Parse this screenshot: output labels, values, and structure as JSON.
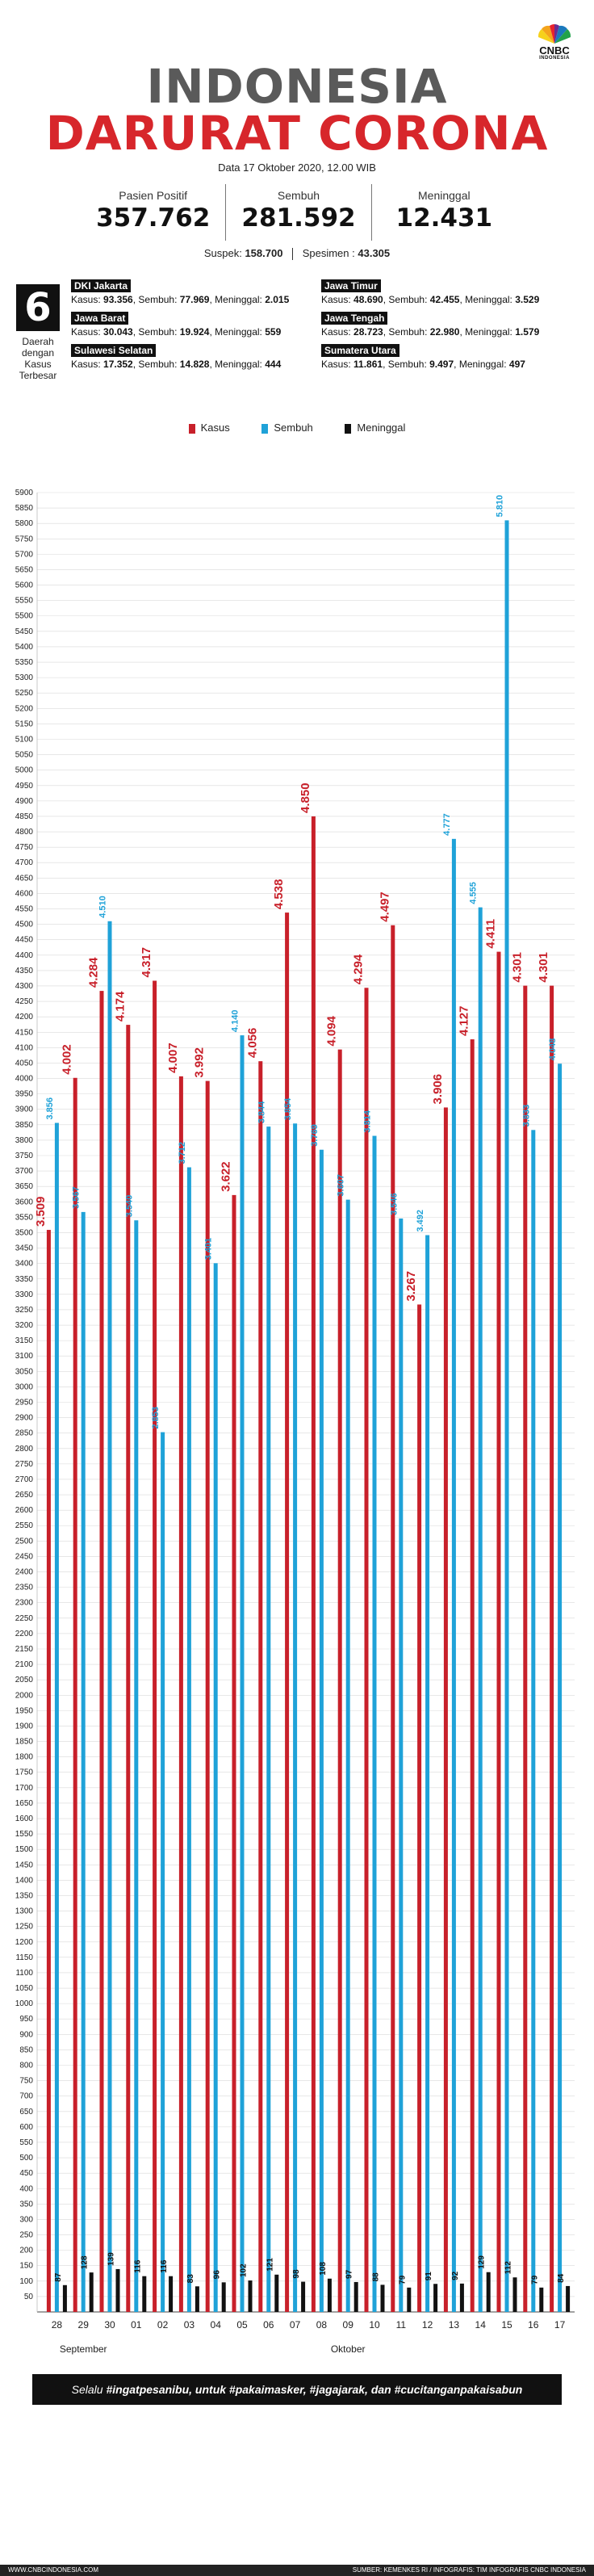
{
  "header": {
    "logo_text": "CNBC",
    "logo_sub": "INDONESIA",
    "title_line1": "INDONESIA",
    "title_line2": "DARURAT CORONA",
    "date": "Data 17 Oktober 2020, 12.00 WIB"
  },
  "stats": [
    {
      "label": "Pasien Positif",
      "value": "357.762"
    },
    {
      "label": "Sembuh",
      "value": "281.592"
    },
    {
      "label": "Meninggal",
      "value": "12.431"
    }
  ],
  "sub_stats": {
    "suspek_label": "Suspek:",
    "suspek_value": "158.700",
    "spesimen_label": "Spesimen :",
    "spesimen_value": "43.305"
  },
  "regions_box": {
    "count": "6",
    "caption": "Daerah dengan Kasus Terbesar",
    "items": [
      {
        "name": "DKI Jakarta",
        "kasus": "93.356",
        "sembuh": "77.969",
        "meninggal": "2.015"
      },
      {
        "name": "Jawa Barat",
        "kasus": "30.043",
        "sembuh": "19.924",
        "meninggal": "559"
      },
      {
        "name": "Sulawesi Selatan",
        "kasus": "17.352",
        "sembuh": "14.828",
        "meninggal": "444"
      },
      {
        "name": "Jawa Timur",
        "kasus": "48.690",
        "sembuh": "42.455",
        "meninggal": "3.529"
      },
      {
        "name": "Jawa Tengah",
        "kasus": "28.723",
        "sembuh": "22.980",
        "meninggal": "1.579"
      },
      {
        "name": "Sumatera Utara",
        "kasus": "11.861",
        "sembuh": "9.497",
        "meninggal": "497"
      }
    ],
    "kasus_label": "Kasus:",
    "sembuh_label": "Sembuh:",
    "meninggal_label": "Meninggal:"
  },
  "colors": {
    "kasus": "#c8202a",
    "sembuh": "#1fa2d8",
    "meninggal": "#111111",
    "grid": "#d9d9d9"
  },
  "chart_data": {
    "type": "bar",
    "categories": [
      "28",
      "29",
      "30",
      "01",
      "02",
      "03",
      "04",
      "05",
      "06",
      "07",
      "08",
      "09",
      "10",
      "11",
      "12",
      "13",
      "14",
      "15",
      "16",
      "17"
    ],
    "month_labels": [
      {
        "label": "September",
        "from": 0,
        "to": 2
      },
      {
        "label": "Oktober",
        "from": 3,
        "to": 19
      }
    ],
    "series": [
      {
        "name": "Kasus",
        "values": [
          3509,
          4002,
          4284,
          4174,
          4317,
          4007,
          3992,
          3622,
          4056,
          4538,
          4850,
          4094,
          4294,
          4497,
          3267,
          3906,
          4127,
          4411,
          4301,
          4301
        ],
        "labels": [
          "3.509",
          "4.002",
          "4.284",
          "4.174",
          "4.317",
          "4.007",
          "3.992",
          "3.622",
          "4.056",
          "4.538",
          "4.850",
          "4.094",
          "4.294",
          "4.497",
          "3.267",
          "3.906",
          "4.127",
          "4.411",
          "4.301",
          "4.301"
        ]
      },
      {
        "name": "Sembuh",
        "values": [
          3856,
          3567,
          4510,
          3540,
          2853,
          3712,
          3401,
          4140,
          3844,
          3854,
          3769,
          3607,
          3814,
          3546,
          3492,
          4777,
          4555,
          5810,
          3833,
          4048
        ],
        "labels": [
          "3.856",
          "3.567",
          "4.510",
          "3.540",
          "2.853",
          "3.712",
          "3.401",
          "4.140",
          "3.844",
          "3.854",
          "3.769",
          "3.607",
          "3.814",
          "3.546",
          "3.492",
          "4.777",
          "4.555",
          "5.810",
          "3.833",
          "4.048"
        ]
      },
      {
        "name": "Meninggal",
        "values": [
          87,
          128,
          139,
          116,
          116,
          83,
          96,
          102,
          121,
          98,
          108,
          97,
          88,
          79,
          91,
          92,
          129,
          112,
          79,
          84
        ],
        "labels": [
          "87",
          "128",
          "139",
          "116",
          "116",
          "83",
          "96",
          "102",
          "121",
          "98",
          "108",
          "97",
          "88",
          "79",
          "91",
          "92",
          "129",
          "112",
          "79",
          "84"
        ]
      }
    ],
    "ylim": [
      0,
      5900
    ],
    "ytick_step": 50,
    "grid": true
  },
  "footer": {
    "band_prefix": "Selalu",
    "band_text": "#ingatpesanibu, untuk #pakaimasker, #jagajarak, dan #cucitanganpakaisabun",
    "website": "WWW.CNBCINDONESIA.COM",
    "source": "SUMBER: KEMENKES RI / INFOGRAFIS: TIM INFOGRAFIS CNBC INDONESIA"
  }
}
